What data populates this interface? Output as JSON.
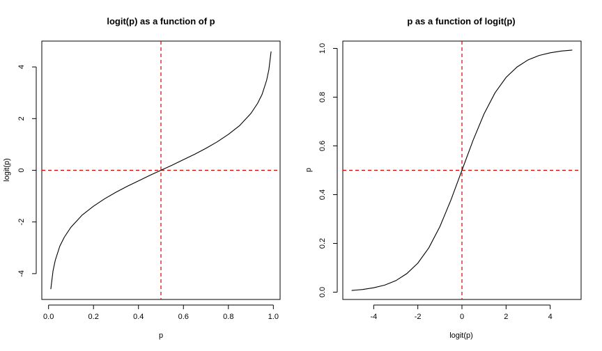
{
  "chart_data": [
    {
      "type": "line",
      "title": "logit(p) as a function of p",
      "xlabel": "p",
      "ylabel": "logit(p)",
      "xlim": [
        -0.03,
        1.03
      ],
      "ylim": [
        -5.0,
        5.0
      ],
      "xticks": [
        0.0,
        0.2,
        0.4,
        0.6,
        0.8,
        1.0
      ],
      "xtick_labels": [
        "0.0",
        "0.2",
        "0.4",
        "0.6",
        "0.8",
        "1.0"
      ],
      "yticks": [
        -4,
        -2,
        0,
        2,
        4
      ],
      "ytick_labels": [
        "-4",
        "-2",
        "0",
        "2",
        "4"
      ],
      "series": [
        {
          "x": [
            0.01,
            0.02,
            0.03,
            0.05,
            0.07,
            0.1,
            0.15,
            0.2,
            0.25,
            0.3,
            0.35,
            0.4,
            0.45,
            0.5,
            0.55,
            0.6,
            0.65,
            0.7,
            0.75,
            0.8,
            0.85,
            0.9,
            0.93,
            0.95,
            0.97,
            0.98,
            0.99
          ],
          "y": [
            -4.6,
            -3.89,
            -3.48,
            -2.94,
            -2.59,
            -2.2,
            -1.73,
            -1.39,
            -1.1,
            -0.85,
            -0.62,
            -0.41,
            -0.2,
            0.0,
            0.2,
            0.41,
            0.62,
            0.85,
            1.1,
            1.39,
            1.73,
            2.2,
            2.59,
            2.94,
            3.48,
            3.89,
            4.6
          ],
          "color": "#000000"
        }
      ],
      "reference_lines": {
        "vertical_x": 0.5,
        "horizontal_y": 0.0,
        "color": "#d40000",
        "style": "dashed"
      },
      "grid": false
    },
    {
      "type": "line",
      "title": "p as a function of logit(p)",
      "xlabel": "logit(p)",
      "ylabel": "p",
      "xlim": [
        -5.4,
        5.4
      ],
      "ylim": [
        -0.03,
        1.03
      ],
      "xticks": [
        -4,
        -2,
        0,
        2,
        4
      ],
      "xtick_labels": [
        "-4",
        "-2",
        "0",
        "2",
        "4"
      ],
      "yticks": [
        0.0,
        0.2,
        0.4,
        0.6,
        0.8,
        1.0
      ],
      "ytick_labels": [
        "0.0",
        "0.2",
        "0.4",
        "0.6",
        "0.8",
        "1.0"
      ],
      "series": [
        {
          "x": [
            -5,
            -4.5,
            -4,
            -3.5,
            -3,
            -2.5,
            -2,
            -1.5,
            -1,
            -0.5,
            0,
            0.5,
            1,
            1.5,
            2,
            2.5,
            3,
            3.5,
            4,
            4.5,
            5
          ],
          "y": [
            0.007,
            0.011,
            0.018,
            0.029,
            0.047,
            0.076,
            0.119,
            0.182,
            0.269,
            0.378,
            0.5,
            0.622,
            0.731,
            0.818,
            0.881,
            0.924,
            0.953,
            0.971,
            0.982,
            0.989,
            0.993
          ],
          "color": "#000000"
        }
      ],
      "reference_lines": {
        "vertical_x": 0.0,
        "horizontal_y": 0.5,
        "color": "#d40000",
        "style": "dashed"
      },
      "grid": false
    }
  ]
}
